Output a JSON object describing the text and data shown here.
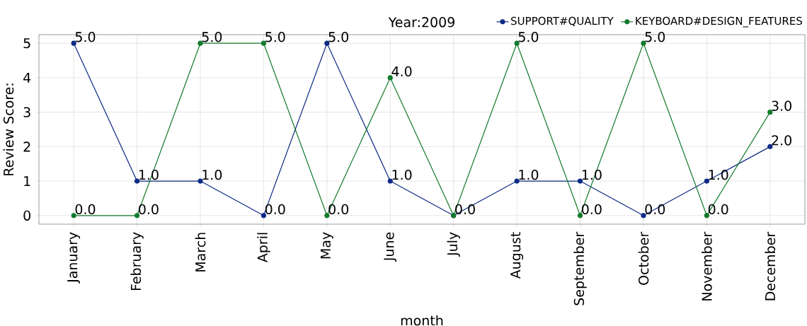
{
  "chart_data": {
    "type": "line",
    "title": "Year:2009",
    "xlabel": "month",
    "ylabel": "Review Score:",
    "categories": [
      "January",
      "February",
      "March",
      "April",
      "May",
      "June",
      "July",
      "August",
      "September",
      "October",
      "November",
      "December"
    ],
    "series": [
      {
        "name": "SUPPORT#QUALITY",
        "color": "#0d2a85",
        "values": [
          5,
          1,
          1,
          0,
          5,
          1,
          0,
          1,
          1,
          0,
          1,
          2
        ],
        "value_labels": [
          "5.0",
          "1.0",
          "1.0",
          "0.0",
          "5.0",
          "1.0",
          null,
          "1.0",
          "1.0",
          "0.0",
          "1.0",
          "2.0"
        ]
      },
      {
        "name": "KEYBOARD#DESIGN_FEATURES",
        "color": "#117a2b",
        "values": [
          0,
          0,
          5,
          5,
          0,
          4,
          0,
          5,
          0,
          5,
          0,
          3
        ],
        "value_labels": [
          "0.0",
          "0.0",
          "5.0",
          "5.0",
          "0.0",
          "4.0",
          "0.0",
          "5.0",
          "0.0",
          "5.0",
          "0.0",
          "3.0"
        ]
      }
    ],
    "ylim": [
      -0.25,
      5.25
    ],
    "yticks": [
      0,
      1,
      2,
      3,
      4,
      5
    ],
    "grid": true,
    "legend": "top right",
    "marker": "circle",
    "line_style": "solid"
  }
}
